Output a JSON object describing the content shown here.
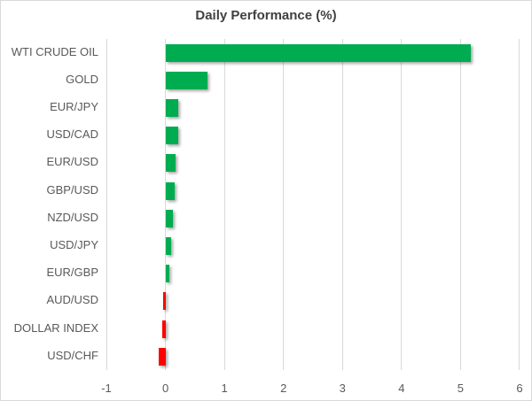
{
  "chart_data": {
    "type": "bar",
    "orientation": "horizontal",
    "title": "Daily Performance (%)",
    "categories": [
      "WTI CRUDE OIL",
      "GOLD",
      "EUR/JPY",
      "USD/CAD",
      "EUR/USD",
      "GBP/USD",
      "NZD/USD",
      "USD/JPY",
      "EUR/GBP",
      "AUD/USD",
      "DOLLAR INDEX",
      "USD/CHF"
    ],
    "values": [
      5.18,
      0.71,
      0.22,
      0.21,
      0.17,
      0.15,
      0.12,
      0.1,
      0.06,
      -0.04,
      -0.06,
      -0.12
    ],
    "xlabel": "",
    "ylabel": "",
    "xlim": [
      -1,
      6
    ],
    "x_ticks": [
      -1,
      0,
      1,
      2,
      3,
      4,
      5,
      6
    ],
    "grid": true,
    "legend": "none",
    "colors": {
      "positive_bar": "#00ac50",
      "negative_bar": "#ff0000",
      "gridline": "#d9d9d9",
      "axis_text": "#595959",
      "title_text": "#404040",
      "background": "#ffffff"
    }
  }
}
